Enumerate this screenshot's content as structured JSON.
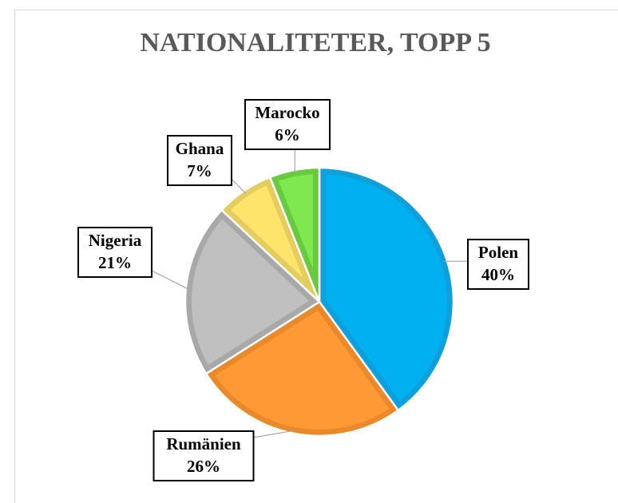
{
  "chart_data": {
    "type": "pie",
    "title": "NATIONALITETER, TOPP 5",
    "categories": [
      "Polen",
      "Rumänien",
      "Nigeria",
      "Ghana",
      "Marocko"
    ],
    "values": [
      40,
      26,
      21,
      7,
      6
    ],
    "value_labels": [
      "40%",
      "26%",
      "21%",
      "7%",
      "6%"
    ],
    "colors": [
      "#00b0f0",
      "#ff9933",
      "#c0c0c0",
      "#ffe36b",
      "#7ee84f"
    ],
    "edge_colors": [
      "#109fd8",
      "#e8892c",
      "#a8a8a8",
      "#e3cd5e",
      "#69c940"
    ]
  }
}
